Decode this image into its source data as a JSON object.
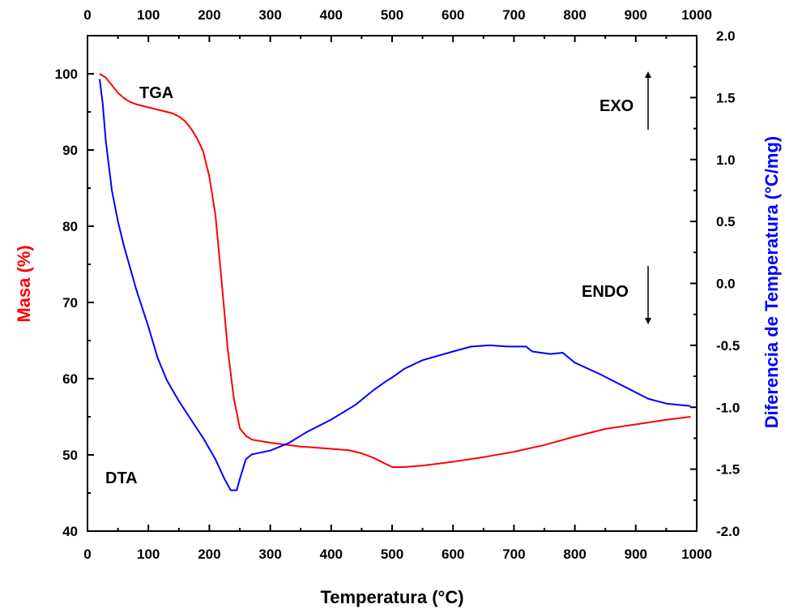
{
  "chart_data": {
    "type": "line",
    "xlabel": "Temperatura (°C)",
    "ylabel_left": "Masa (%)",
    "ylabel_right": "Diferencia de Temperatura (°C/mg)",
    "xlim": [
      0,
      1000
    ],
    "ylim_left": [
      40,
      105
    ],
    "ylim_right": [
      -2.0,
      2.0
    ],
    "x_ticks": [
      0,
      100,
      200,
      300,
      400,
      500,
      600,
      700,
      800,
      900,
      1000
    ],
    "y_left_ticks": [
      40,
      50,
      60,
      70,
      80,
      90,
      100
    ],
    "y_right_ticks": [
      -2.0,
      -1.5,
      -1.0,
      -0.5,
      0.0,
      0.5,
      1.0,
      1.5,
      2.0
    ],
    "colors": {
      "tga": "#ff0000",
      "dta": "#0000ff",
      "axis": "#000000"
    },
    "grid": false,
    "annotations": {
      "tga": "TGA",
      "dta": "DTA",
      "exo": "EXO",
      "endo": "ENDO"
    },
    "series": [
      {
        "axis": "left",
        "color": "#ff0000",
        "points": [
          [
            20,
            100.0
          ],
          [
            30,
            99.5
          ],
          [
            40,
            98.5
          ],
          [
            50,
            97.5
          ],
          [
            60,
            96.8
          ],
          [
            70,
            96.3
          ],
          [
            80,
            96.0
          ],
          [
            100,
            95.6
          ],
          [
            120,
            95.2
          ],
          [
            140,
            94.8
          ],
          [
            150,
            94.4
          ],
          [
            160,
            93.8
          ],
          [
            170,
            92.8
          ],
          [
            180,
            91.5
          ],
          [
            190,
            89.8
          ],
          [
            200,
            86.5
          ],
          [
            210,
            81.5
          ],
          [
            220,
            73.0
          ],
          [
            230,
            64.0
          ],
          [
            240,
            57.5
          ],
          [
            250,
            53.5
          ],
          [
            260,
            52.5
          ],
          [
            270,
            52.0
          ],
          [
            300,
            51.6
          ],
          [
            350,
            51.1
          ],
          [
            400,
            50.8
          ],
          [
            430,
            50.6
          ],
          [
            450,
            50.2
          ],
          [
            470,
            49.6
          ],
          [
            490,
            48.8
          ],
          [
            500,
            48.4
          ],
          [
            520,
            48.4
          ],
          [
            550,
            48.6
          ],
          [
            600,
            49.1
          ],
          [
            650,
            49.7
          ],
          [
            700,
            50.4
          ],
          [
            750,
            51.3
          ],
          [
            800,
            52.4
          ],
          [
            850,
            53.4
          ],
          [
            900,
            54.0
          ],
          [
            950,
            54.6
          ],
          [
            990,
            55.0
          ]
        ]
      },
      {
        "axis": "right",
        "color": "#0000ff",
        "points": [
          [
            20,
            1.65
          ],
          [
            25,
            1.45
          ],
          [
            30,
            1.15
          ],
          [
            40,
            0.75
          ],
          [
            50,
            0.5
          ],
          [
            60,
            0.3
          ],
          [
            80,
            -0.05
          ],
          [
            100,
            -0.35
          ],
          [
            115,
            -0.6
          ],
          [
            130,
            -0.78
          ],
          [
            150,
            -0.95
          ],
          [
            170,
            -1.1
          ],
          [
            190,
            -1.25
          ],
          [
            210,
            -1.42
          ],
          [
            225,
            -1.58
          ],
          [
            235,
            -1.67
          ],
          [
            245,
            -1.67
          ],
          [
            250,
            -1.58
          ],
          [
            260,
            -1.42
          ],
          [
            270,
            -1.38
          ],
          [
            300,
            -1.35
          ],
          [
            330,
            -1.29
          ],
          [
            360,
            -1.2
          ],
          [
            400,
            -1.1
          ],
          [
            440,
            -0.98
          ],
          [
            470,
            -0.86
          ],
          [
            490,
            -0.79
          ],
          [
            500,
            -0.76
          ],
          [
            520,
            -0.69
          ],
          [
            550,
            -0.62
          ],
          [
            600,
            -0.55
          ],
          [
            630,
            -0.51
          ],
          [
            660,
            -0.5
          ],
          [
            690,
            -0.51
          ],
          [
            720,
            -0.51
          ],
          [
            730,
            -0.55
          ],
          [
            760,
            -0.57
          ],
          [
            780,
            -0.56
          ],
          [
            800,
            -0.64
          ],
          [
            840,
            -0.73
          ],
          [
            880,
            -0.83
          ],
          [
            920,
            -0.93
          ],
          [
            950,
            -0.97
          ],
          [
            990,
            -0.99
          ]
        ]
      }
    ]
  }
}
